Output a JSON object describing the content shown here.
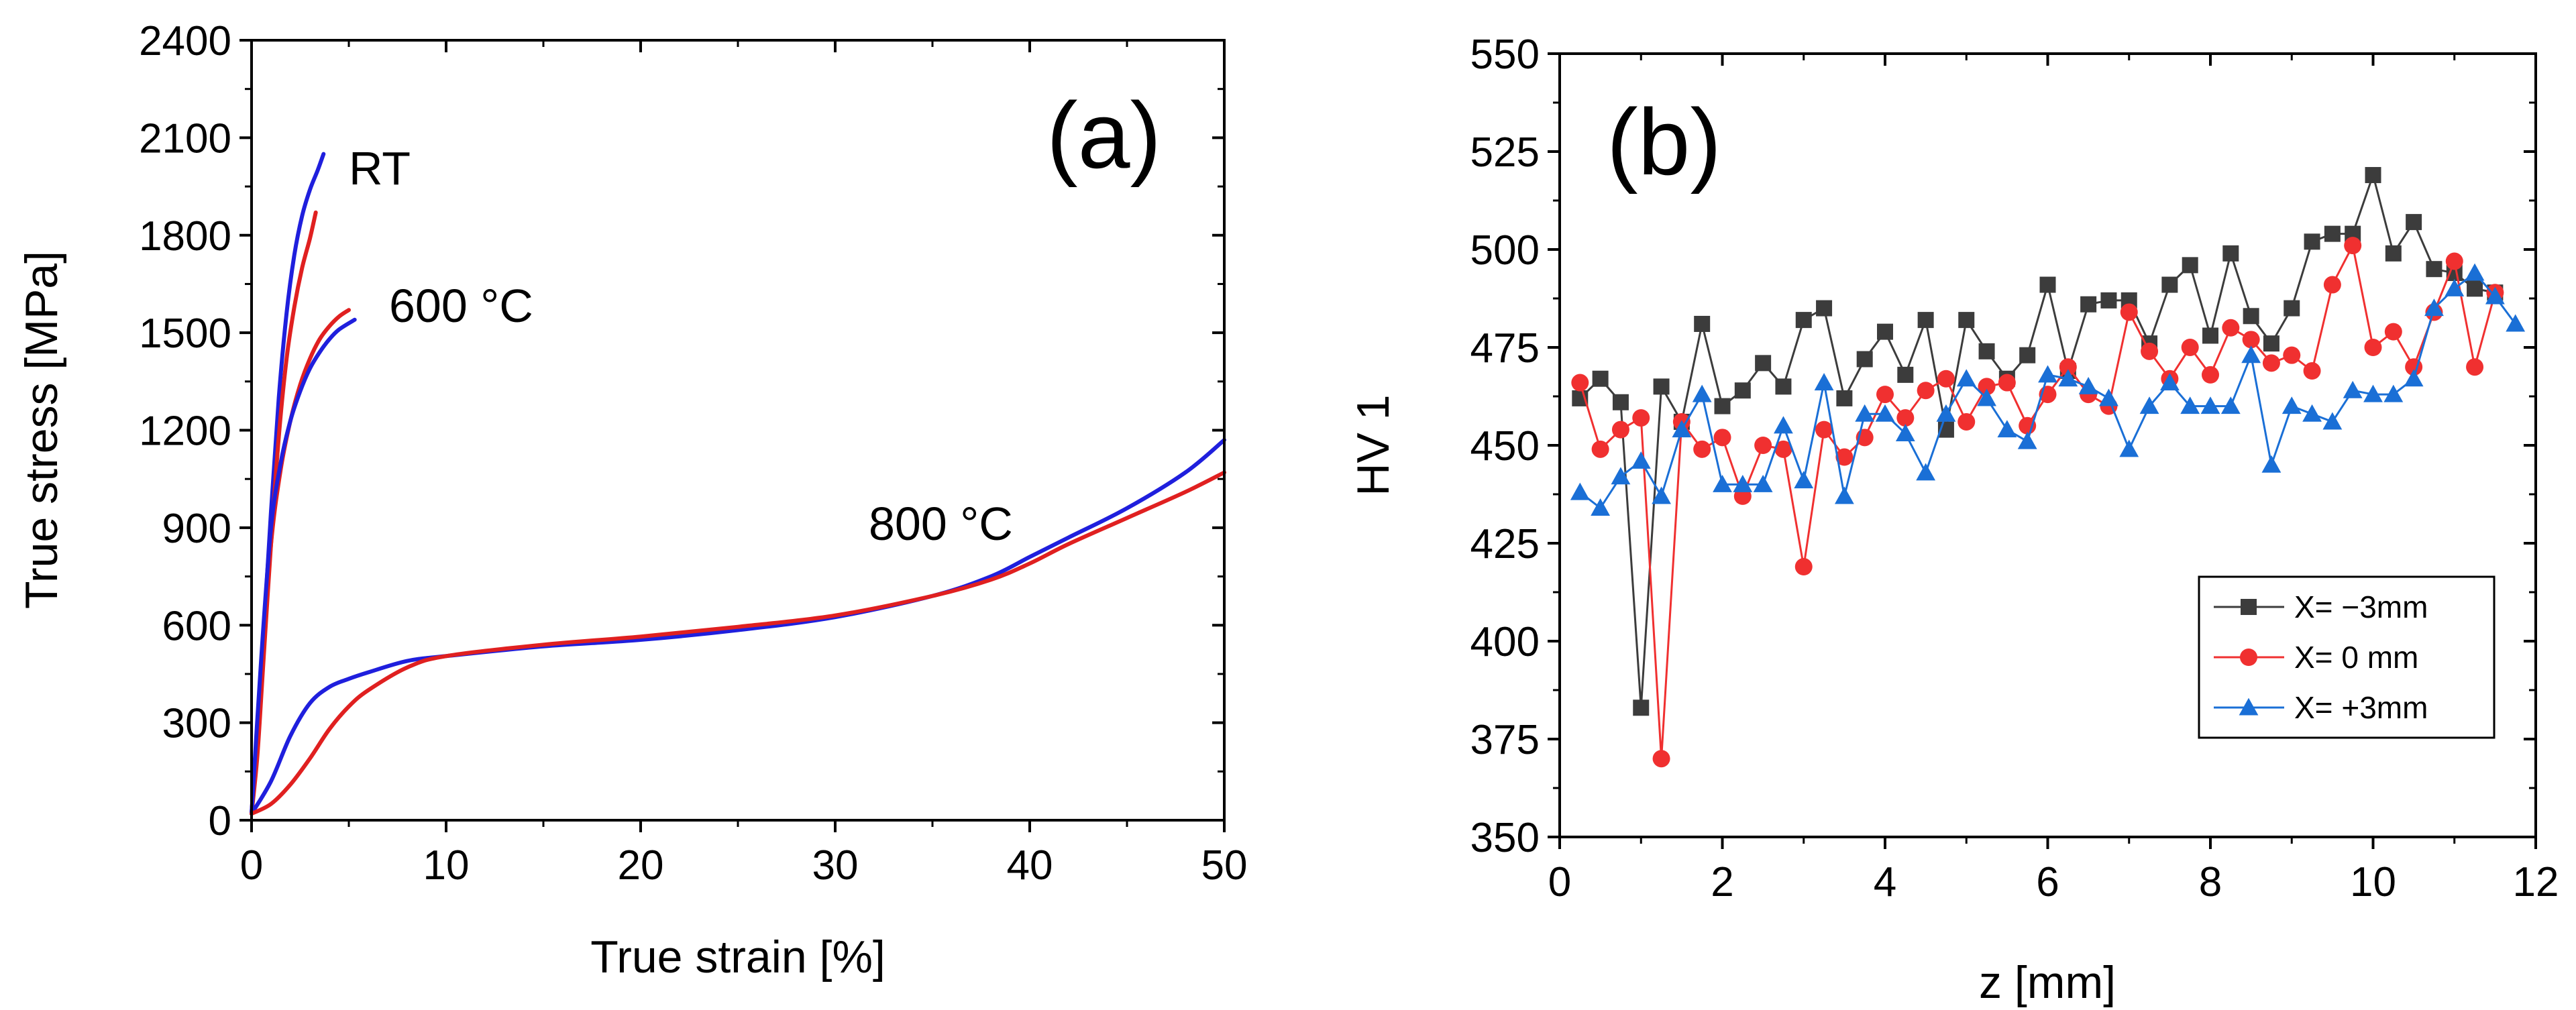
{
  "chart_data": [
    {
      "id": "a",
      "type": "line",
      "panel_label": "(a)",
      "xlabel": "True strain [%]",
      "ylabel": "True stress [MPa]",
      "xlim": [
        0,
        50
      ],
      "ylim": [
        0,
        2400
      ],
      "xticks": [
        0,
        10,
        20,
        30,
        40,
        50
      ],
      "yticks": [
        0,
        300,
        600,
        900,
        1200,
        1500,
        1800,
        2100,
        2400
      ],
      "grid": false,
      "annotations": [
        {
          "text": "RT",
          "x": 5,
          "y": 1990
        },
        {
          "text": "600 °C",
          "x": 7,
          "y": 1560
        },
        {
          "text": "800 °C",
          "x": 31,
          "y": 880
        }
      ],
      "series": [
        {
          "name": "RT blue",
          "color": "#1f1fdd",
          "x": [
            0,
            0.3,
            0.6,
            1.0,
            1.4,
            1.8,
            2.2,
            2.6,
            3.0,
            3.4,
            3.7
          ],
          "y": [
            20,
            250,
            550,
            950,
            1300,
            1560,
            1740,
            1860,
            1940,
            2000,
            2050
          ]
        },
        {
          "name": "RT red",
          "color": "#e02020",
          "x": [
            0,
            0.3,
            0.6,
            1.0,
            1.4,
            1.8,
            2.2,
            2.6,
            3.0,
            3.3
          ],
          "y": [
            20,
            200,
            480,
            850,
            1180,
            1420,
            1580,
            1700,
            1790,
            1870
          ]
        },
        {
          "name": "600 °C red",
          "color": "#e02020",
          "x": [
            0,
            0.5,
            1.0,
            1.5,
            2.0,
            2.5,
            3.0,
            3.5,
            4.0,
            4.5,
            5.0
          ],
          "y": [
            20,
            450,
            850,
            1080,
            1230,
            1340,
            1420,
            1480,
            1520,
            1550,
            1570
          ]
        },
        {
          "name": "600 °C blue",
          "color": "#1f1fdd",
          "x": [
            0,
            0.5,
            1.0,
            1.5,
            2.0,
            2.5,
            3.0,
            3.5,
            4.0,
            4.5,
            5.3
          ],
          "y": [
            20,
            500,
            900,
            1100,
            1230,
            1320,
            1390,
            1440,
            1480,
            1510,
            1540
          ]
        },
        {
          "name": "800 °C blue",
          "color": "#1f1fdd",
          "x": [
            0,
            1,
            2,
            3,
            4,
            5,
            6,
            8,
            10,
            15,
            20,
            25,
            30,
            35,
            38,
            40,
            42,
            45,
            48,
            50
          ],
          "y": [
            20,
            120,
            260,
            360,
            410,
            435,
            455,
            490,
            505,
            535,
            555,
            585,
            625,
            690,
            750,
            810,
            870,
            960,
            1070,
            1170
          ]
        },
        {
          "name": "800 °C red",
          "color": "#e02020",
          "x": [
            0,
            1,
            2,
            3,
            4,
            5,
            6,
            8,
            10,
            15,
            20,
            25,
            30,
            35,
            38,
            40,
            42,
            45,
            48,
            50
          ],
          "y": [
            20,
            50,
            110,
            190,
            280,
            350,
            400,
            470,
            505,
            540,
            565,
            595,
            630,
            690,
            740,
            790,
            850,
            930,
            1010,
            1070
          ]
        }
      ]
    },
    {
      "id": "b",
      "type": "line",
      "panel_label": "(b)",
      "xlabel": "z [mm]",
      "ylabel": "HV 1",
      "xlim": [
        0,
        12
      ],
      "ylim": [
        350,
        550
      ],
      "xticks": [
        0,
        2,
        4,
        6,
        8,
        10,
        12
      ],
      "yticks": [
        350,
        375,
        400,
        425,
        450,
        475,
        500,
        525,
        550
      ],
      "grid": false,
      "legend": "inside bottom-right",
      "series": [
        {
          "name": "X= −3mm",
          "color": "#3c3c3c",
          "marker": "square",
          "x": [
            0.25,
            0.5,
            0.75,
            1.0,
            1.25,
            1.5,
            1.75,
            2.0,
            2.25,
            2.5,
            2.75,
            3.0,
            3.25,
            3.5,
            3.75,
            4.0,
            4.25,
            4.5,
            4.75,
            5.0,
            5.25,
            5.5,
            5.75,
            6.0,
            6.25,
            6.5,
            6.75,
            7.0,
            7.25,
            7.5,
            7.75,
            8.0,
            8.25,
            8.5,
            8.75,
            9.0,
            9.25,
            9.5,
            9.75,
            10.0,
            10.25,
            10.5,
            10.75,
            11.0,
            11.25,
            11.5
          ],
          "y": [
            462,
            467,
            461,
            383,
            465,
            456,
            481,
            460,
            464,
            471,
            465,
            482,
            485,
            462,
            472,
            479,
            468,
            482,
            454,
            482,
            474,
            467,
            473,
            491,
            469,
            486,
            487,
            487,
            476,
            491,
            496,
            478,
            499,
            483,
            476,
            485,
            502,
            504,
            504,
            519,
            499,
            507,
            495,
            494,
            490,
            489
          ]
        },
        {
          "name": "X= 0 mm",
          "color": "#f03030",
          "marker": "circle",
          "x": [
            0.25,
            0.5,
            0.75,
            1.0,
            1.25,
            1.5,
            1.75,
            2.0,
            2.25,
            2.5,
            2.75,
            3.0,
            3.25,
            3.5,
            3.75,
            4.0,
            4.25,
            4.5,
            4.75,
            5.0,
            5.25,
            5.5,
            5.75,
            6.0,
            6.25,
            6.5,
            6.75,
            7.0,
            7.25,
            7.5,
            7.75,
            8.0,
            8.25,
            8.5,
            8.75,
            9.0,
            9.25,
            9.5,
            9.75,
            10.0,
            10.25,
            10.5,
            10.75,
            11.0,
            11.25,
            11.5
          ],
          "y": [
            466,
            449,
            454,
            457,
            370,
            456,
            449,
            452,
            437,
            450,
            449,
            419,
            454,
            447,
            452,
            463,
            457,
            464,
            467,
            456,
            465,
            466,
            455,
            463,
            470,
            463,
            460,
            484,
            474,
            467,
            475,
            468,
            480,
            477,
            471,
            473,
            469,
            491,
            501,
            475,
            479,
            470,
            484,
            497,
            470,
            489
          ]
        },
        {
          "name": "X= +3mm",
          "color": "#1a6fd6",
          "marker": "triangle",
          "x": [
            0.25,
            0.5,
            0.75,
            1.0,
            1.25,
            1.5,
            1.75,
            2.0,
            2.25,
            2.5,
            2.75,
            3.0,
            3.25,
            3.5,
            3.75,
            4.0,
            4.25,
            4.5,
            4.75,
            5.0,
            5.25,
            5.5,
            5.75,
            6.0,
            6.25,
            6.5,
            6.75,
            7.0,
            7.25,
            7.5,
            7.75,
            8.0,
            8.25,
            8.5,
            8.75,
            9.0,
            9.25,
            9.5,
            9.75,
            10.0,
            10.25,
            10.5,
            10.75,
            11.0,
            11.25,
            11.5,
            11.75
          ],
          "y": [
            438,
            434,
            442,
            446,
            437,
            454,
            463,
            440,
            440,
            440,
            455,
            441,
            466,
            437,
            458,
            458,
            453,
            443,
            458,
            467,
            462,
            454,
            451,
            468,
            467,
            465,
            462,
            449,
            460,
            466,
            460,
            460,
            460,
            473,
            445,
            460,
            458,
            456,
            464,
            463,
            463,
            467,
            485,
            490,
            494,
            488,
            481
          ]
        }
      ]
    }
  ]
}
